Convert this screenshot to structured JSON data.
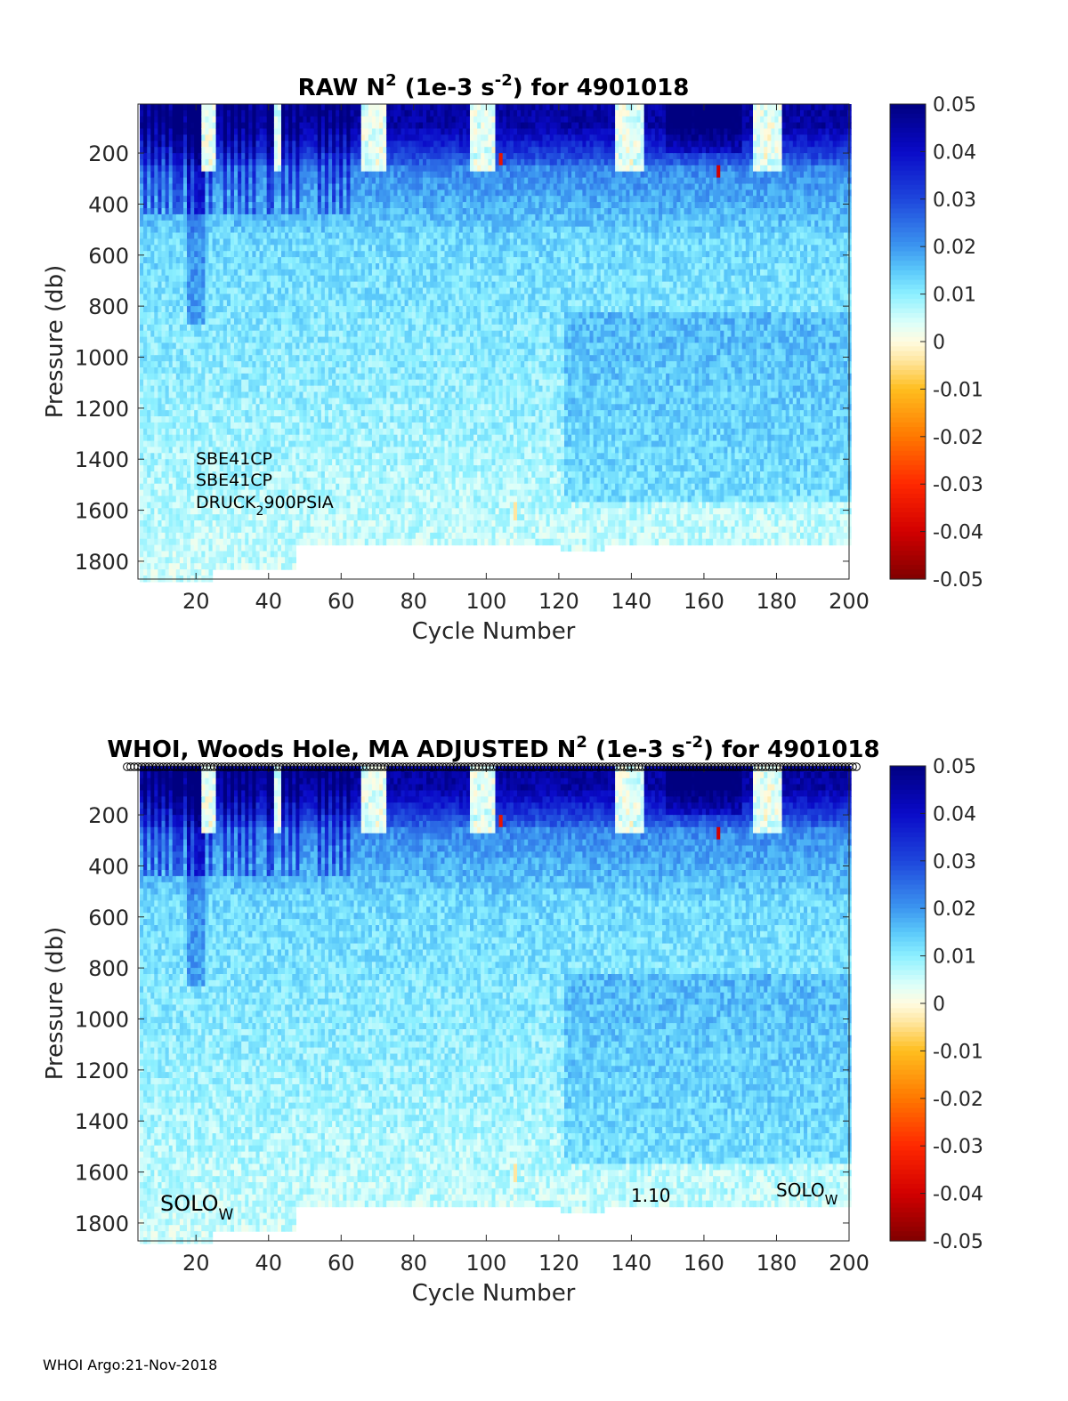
{
  "footer": "WHOI Argo:21-Nov-2018",
  "chart_data": [
    {
      "type": "heatmap",
      "title": {
        "pre": "RAW N",
        "sup1": "2",
        "mid": " (1e-3 s",
        "sup2": "-2",
        "post": ") for 4901018"
      },
      "xlabel": "Cycle Number",
      "ylabel": "Pressure (db)",
      "xlim": [
        4,
        200
      ],
      "ylim": [
        1870,
        8
      ],
      "y_reversed": true,
      "xticks": [
        20,
        40,
        60,
        80,
        100,
        120,
        140,
        160,
        180,
        200
      ],
      "yticks": [
        200,
        400,
        600,
        800,
        1000,
        1200,
        1400,
        1600,
        1800
      ],
      "colorbar": {
        "min": -0.05,
        "max": 0.05,
        "ticks": [
          "0.05",
          "0.04",
          "0.03",
          "0.02",
          "0.01",
          "0",
          "-0.01",
          "-0.02",
          "-0.03",
          "-0.04",
          "-0.05"
        ]
      },
      "annotations": [
        {
          "lines": [
            "SBE41CP",
            "SBE41CP"
          ],
          "druck": {
            "main": "DRUCK",
            "sub": "2",
            "rest": "900PSIA"
          }
        }
      ],
      "markers": false
    },
    {
      "type": "heatmap",
      "title": {
        "pre": "WHOI, Woods Hole, MA  ADJUSTED N",
        "sup1": "2",
        "mid": " (1e-3 s",
        "sup2": "-2",
        "post": ") for 4901018"
      },
      "xlabel": "Cycle Number",
      "ylabel": "Pressure (db)",
      "xlim": [
        4,
        200
      ],
      "ylim": [
        1870,
        8
      ],
      "y_reversed": true,
      "xticks": [
        20,
        40,
        60,
        80,
        100,
        120,
        140,
        160,
        180,
        200
      ],
      "yticks": [
        200,
        400,
        600,
        800,
        1000,
        1200,
        1400,
        1600,
        1800
      ],
      "colorbar": {
        "min": -0.05,
        "max": 0.05,
        "ticks": [
          "0.05",
          "0.04",
          "0.03",
          "0.02",
          "0.01",
          "0",
          "-0.01",
          "-0.02",
          "-0.03",
          "-0.04",
          "-0.05"
        ]
      },
      "annotations": [
        {
          "solo_left": {
            "main": "SOLO",
            "sub": "W"
          }
        },
        {
          "version": "1.10"
        },
        {
          "solo_right": {
            "main": "SOLO",
            "sub": "W"
          }
        }
      ],
      "markers": true
    }
  ]
}
